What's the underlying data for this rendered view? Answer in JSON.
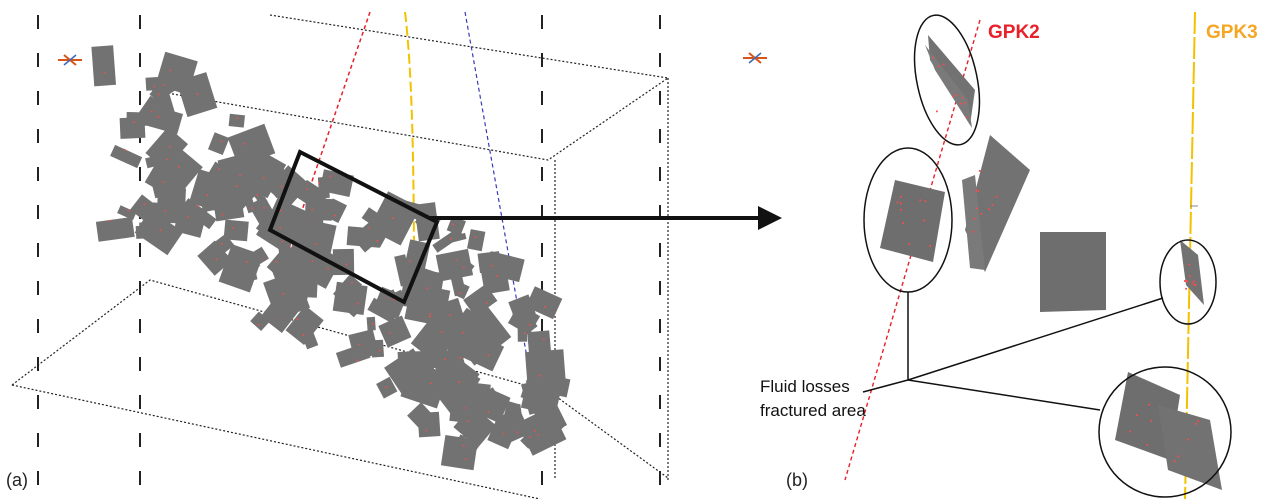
{
  "panels": {
    "a": {
      "label": "(a)"
    },
    "b": {
      "label": "(b)"
    }
  },
  "wells": {
    "gpk2": {
      "label": "GPK2",
      "color": "#e8202a"
    },
    "gpk3": {
      "label": "GPK3",
      "color": "#f5a623"
    }
  },
  "annotation": {
    "line1": "Fluid losses",
    "line2": "fractured area"
  },
  "colors": {
    "fracture_fill": "#727272",
    "fracture_dots": "#ff4a4a",
    "box_lines": "#222222",
    "well_gpk3_line": "#f2c200",
    "well_blue_line": "#3a3ab8",
    "zoom_box": "#111111"
  }
}
